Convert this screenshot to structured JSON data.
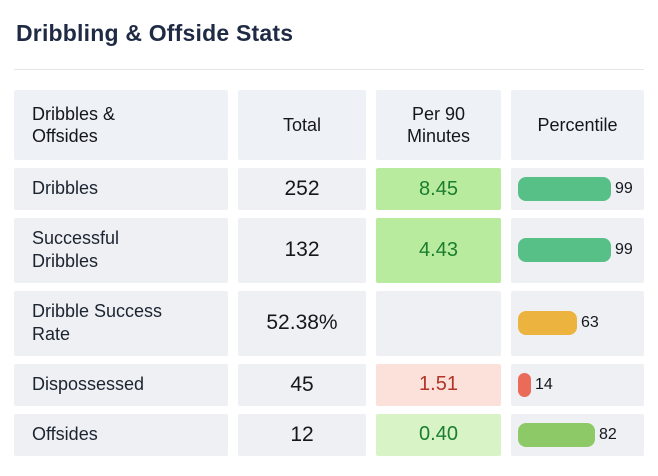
{
  "title": "Dribbling & Offside Stats",
  "chart_data": {
    "type": "table",
    "title": "Dribbling & Offside Stats",
    "columns": [
      "Dribbles & Offsides",
      "Total",
      "Per 90 Minutes",
      "Percentile"
    ],
    "percentile_axis_range": [
      0,
      100
    ],
    "rows": [
      {
        "label": "Dribbles",
        "total": "252",
        "per90": "8.45",
        "per90_tone": "green",
        "percentile": 99,
        "bar_color": "#56c087"
      },
      {
        "label": "Successful Dribbles",
        "total": "132",
        "per90": "4.43",
        "per90_tone": "green",
        "percentile": 99,
        "bar_color": "#56c087"
      },
      {
        "label": "Dribble Success Rate",
        "total": "52.38%",
        "per90": "",
        "per90_tone": "none",
        "percentile": 63,
        "bar_color": "#ecb43e"
      },
      {
        "label": "Dispossessed",
        "total": "45",
        "per90": "1.51",
        "per90_tone": "red",
        "percentile": 14,
        "bar_color": "#e96b58"
      },
      {
        "label": "Offsides",
        "total": "12",
        "per90": "0.40",
        "per90_tone": "green-light",
        "percentile": 82,
        "bar_color": "#8dca67"
      }
    ]
  },
  "colors": {
    "title_text": "#1f2a44",
    "cell_background": "#eef0f4",
    "good_cell_background": "#b9eb9e",
    "good_light_cell_background": "#d8f3c6",
    "bad_cell_background": "#fce1da",
    "good_text": "#1b7e2f",
    "bad_text": "#b23527",
    "bar_green": "#56c087",
    "bar_yellow_green": "#8dca67",
    "bar_amber": "#ecb43e",
    "bar_red": "#e96b58"
  }
}
